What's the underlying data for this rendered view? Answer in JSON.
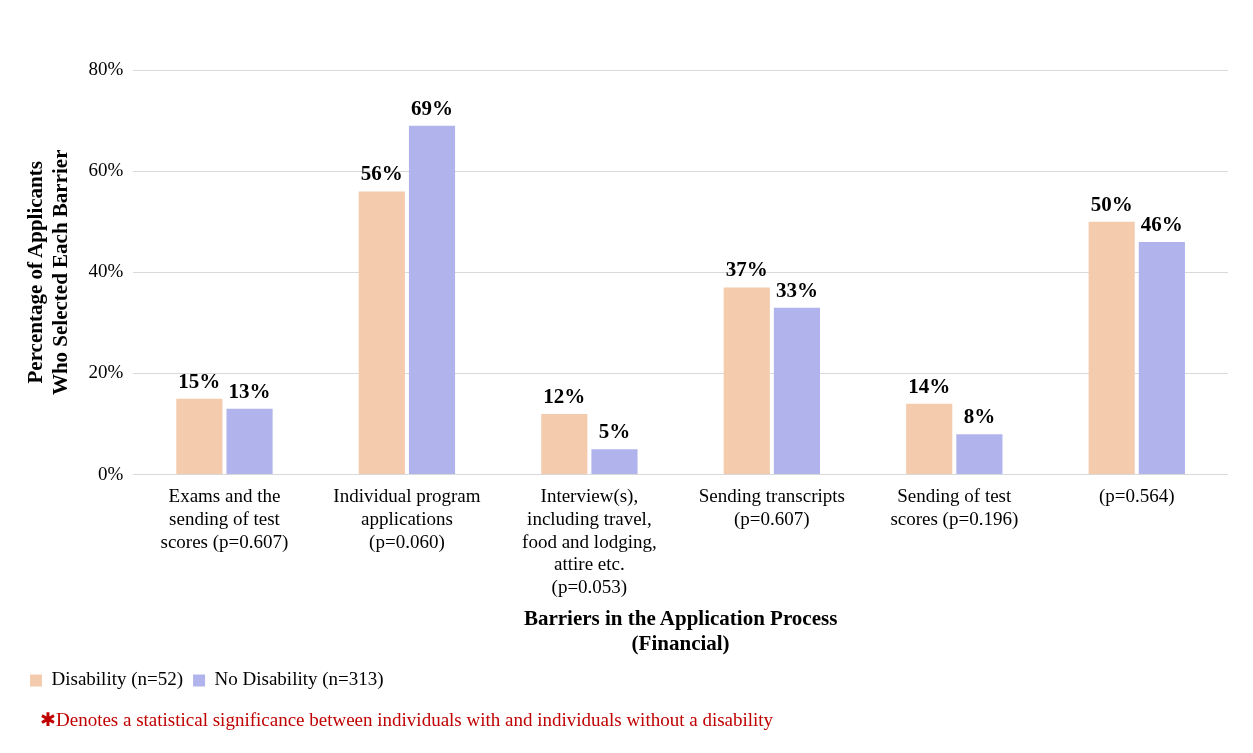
{
  "chart_data": {
    "type": "bar",
    "xlabel": "Barriers in the Application Process (Financial)",
    "ylabel": "Percentage of Applicants Who Selected Each Barrier",
    "categories": [
      "Exams and the sending of test scores (p=0.607)",
      "Individual program applications (p=0.060)",
      "Interview(s), including travel, food and lodging, attire etc. (p=0.053)",
      "Sending transcripts (p=0.607)",
      "Sending of test scores (p=0.196)",
      "(p=0.564)"
    ],
    "series": [
      {
        "name": "Disability (n=52)",
        "color": "#f4cbac",
        "values": [
          15,
          56,
          12,
          37,
          14,
          50
        ],
        "value_labels": [
          "15%",
          "56%",
          "12%",
          "37%",
          "14%",
          "50%"
        ]
      },
      {
        "name": "No Disability (n=313)",
        "color": "#b1b4ec",
        "values": [
          13,
          69,
          5,
          33,
          8,
          46
        ],
        "value_labels": [
          "13%",
          "69%",
          "5%",
          "33%",
          "8%",
          "46%"
        ]
      }
    ],
    "ylim": [
      0,
      80
    ],
    "yticks": [
      {
        "value": 0,
        "label": "0%"
      },
      {
        "value": 20,
        "label": "20%"
      },
      {
        "value": 40,
        "label": "40%"
      },
      {
        "value": 60,
        "label": "60%"
      },
      {
        "value": 80,
        "label": "80%"
      }
    ],
    "grid": "y",
    "legend": "bottom left",
    "annotations": [
      "✱Denotes a statistical significance between individuals with and individuals without a disability"
    ]
  }
}
